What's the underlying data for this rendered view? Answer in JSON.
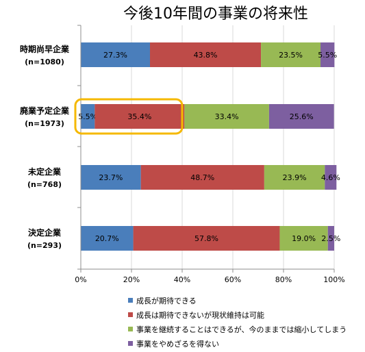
{
  "chart_data": {
    "type": "bar",
    "orientation": "horizontal",
    "stacked": true,
    "title": "今後10年間の事業の将来性",
    "categories": [
      {
        "name": "時期尚早企業",
        "n": "(n=1080)"
      },
      {
        "name": "廃業予定企業",
        "n": "(n=1973)"
      },
      {
        "name": "未定企業",
        "n": "(n=768)"
      },
      {
        "name": "決定企業",
        "n": "(n=293)"
      }
    ],
    "series": [
      {
        "name": "成長が期待できる",
        "color": "#4a7ebb",
        "values": [
          27.3,
          5.5,
          23.7,
          20.7
        ],
        "labels": [
          "27.3%",
          "5.5%",
          "23.7%",
          "20.7%"
        ]
      },
      {
        "name": "成長は期待できないが現状維持は可能",
        "color": "#be4b48",
        "values": [
          43.8,
          35.4,
          48.7,
          57.8
        ],
        "labels": [
          "43.8%",
          "35.4%",
          "48.7%",
          "57.8%"
        ]
      },
      {
        "name": "事業を継続することはできるが、今のままでは縮小してしまう",
        "color": "#98b954",
        "values": [
          23.5,
          33.4,
          23.9,
          19.0
        ],
        "labels": [
          "23.5%",
          "33.4%",
          "23.9%",
          "19.0%"
        ]
      },
      {
        "name": "事業をやめざるを得ない",
        "color": "#7d5fa0",
        "values": [
          5.5,
          25.6,
          4.6,
          2.5
        ],
        "labels": [
          "5.5%",
          "25.6%",
          "4.6%",
          "2.5%"
        ]
      }
    ],
    "xlim": [
      0,
      100
    ],
    "x_ticks": [
      "0%",
      "20%",
      "40%",
      "60%",
      "80%",
      "100%"
    ],
    "x_tick_values": [
      0,
      20,
      40,
      60,
      80,
      100
    ],
    "grid": true,
    "legend_position": "bottom",
    "highlight": {
      "category": 1,
      "from": 0,
      "to": 40,
      "color": "#f5b800"
    }
  }
}
